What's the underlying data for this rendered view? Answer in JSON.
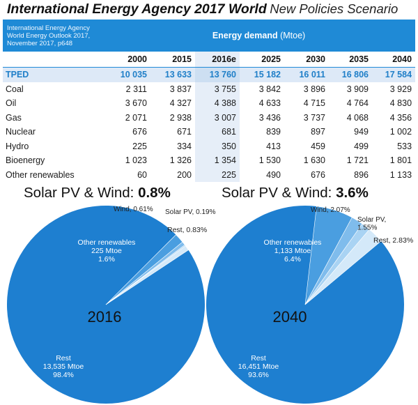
{
  "title": {
    "bold": "International Energy Agency 2017 World",
    "light": "New Policies Scenario"
  },
  "table": {
    "source": "International Energy Agency World Energy Outlook 2017, November 2017, p648",
    "header": "Energy demand",
    "unit": "(Mtoe)",
    "years": [
      "2000",
      "2015",
      "2016e",
      "2025",
      "2030",
      "2035",
      "2040"
    ],
    "rows": [
      {
        "label": "TPED",
        "values": [
          "10 035",
          "13 633",
          "13 760",
          "15 182",
          "16 011",
          "16 806",
          "17 584"
        ]
      },
      {
        "label": "Coal",
        "values": [
          "2 311",
          "3 837",
          "3 755",
          "3 842",
          "3 896",
          "3 909",
          "3 929"
        ]
      },
      {
        "label": "Oil",
        "values": [
          "3 670",
          "4 327",
          "4 388",
          "4 633",
          "4 715",
          "4 764",
          "4 830"
        ]
      },
      {
        "label": "Gas",
        "values": [
          "2 071",
          "2 938",
          "3 007",
          "3 436",
          "3 737",
          "4 068",
          "4 356"
        ]
      },
      {
        "label": "Nuclear",
        "values": [
          "676",
          "671",
          "681",
          "839",
          "897",
          "949",
          "1 002"
        ]
      },
      {
        "label": "Hydro",
        "values": [
          "225",
          "334",
          "350",
          "413",
          "459",
          "499",
          "533"
        ]
      },
      {
        "label": "Bioenergy",
        "values": [
          "1 023",
          "1 326",
          "1 354",
          "1 530",
          "1 630",
          "1 721",
          "1 801"
        ]
      },
      {
        "label": "Other renewables",
        "values": [
          "60",
          "200",
          "225",
          "490",
          "676",
          "896",
          "1 133"
        ]
      }
    ]
  },
  "colors": {
    "header": "#1f8ad6",
    "pie_rest": "#1e7fd0",
    "pie_other": "#4a9ee0",
    "pie_wind": "#7fbcec",
    "pie_solar": "#a9d3f3",
    "pie_rest_small": "#d4e9f9"
  },
  "chart_data": [
    {
      "type": "pie",
      "title": "2016",
      "headline_prefix": "Solar PV & Wind:",
      "headline_value": "0.8%",
      "slices": [
        {
          "name": "Rest",
          "value": 98.4,
          "label_lines": [
            "Rest",
            "13,535 Mtoe",
            "98.4%"
          ]
        },
        {
          "name": "Other renewables",
          "value": 1.6,
          "label_lines": [
            "Other renewables",
            "225 Mtoe",
            "1.6%"
          ]
        },
        {
          "name": "Wind",
          "value": 0.61,
          "label_lines": [
            "Wind, 0.61%"
          ]
        },
        {
          "name": "Solar PV",
          "value": 0.19,
          "label_lines": [
            "Solar PV, 0.19%"
          ]
        },
        {
          "name": "Rest",
          "value": 0.83,
          "label_lines": [
            "Rest,  0.83%"
          ]
        }
      ]
    },
    {
      "type": "pie",
      "title": "2040",
      "headline_prefix": "Solar PV & Wind:",
      "headline_value": "3.6%",
      "slices": [
        {
          "name": "Rest",
          "value": 93.6,
          "label_lines": [
            "Rest",
            "16,451 Mtoe",
            "93.6%"
          ]
        },
        {
          "name": "Other renewables",
          "value": 6.4,
          "label_lines": [
            "Other renewables",
            "1,133 Mtoe",
            "6.4%"
          ]
        },
        {
          "name": "Wind",
          "value": 2.07,
          "label_lines": [
            "Wind, 2.07%"
          ]
        },
        {
          "name": "Solar PV",
          "value": 1.55,
          "label_lines": [
            "Solar PV,",
            "1.55%"
          ]
        },
        {
          "name": "Rest",
          "value": 2.83,
          "label_lines": [
            "Rest, 2.83%"
          ]
        }
      ]
    }
  ]
}
